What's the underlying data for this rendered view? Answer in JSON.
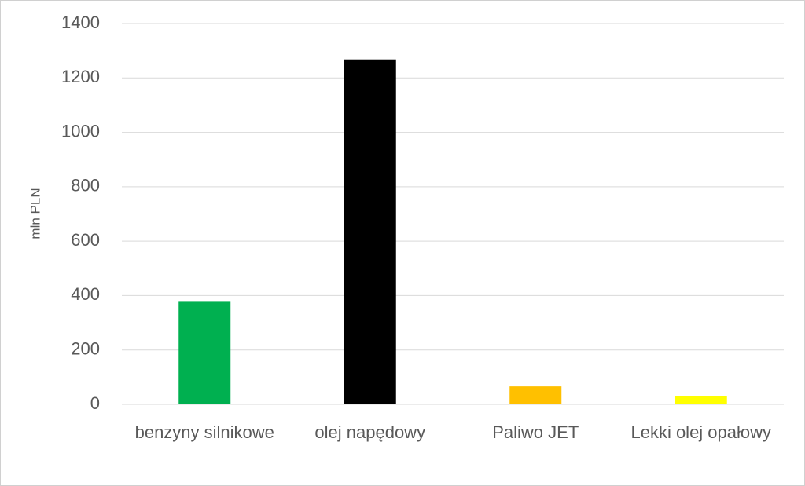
{
  "chart_data": {
    "type": "bar",
    "y_label": "mln PLN",
    "categories": [
      "benzyny silnikowe",
      "olej napędowy",
      "Paliwo JET",
      "Lekki olej opałowy"
    ],
    "values": [
      377,
      1268,
      66,
      29
    ],
    "colors": [
      "#00b050",
      "#000000",
      "#ffc000",
      "#ffff00"
    ],
    "ylim": [
      0,
      1400
    ],
    "yticks": [
      0,
      200,
      400,
      600,
      800,
      1000,
      1200,
      1400
    ],
    "grid": true
  }
}
